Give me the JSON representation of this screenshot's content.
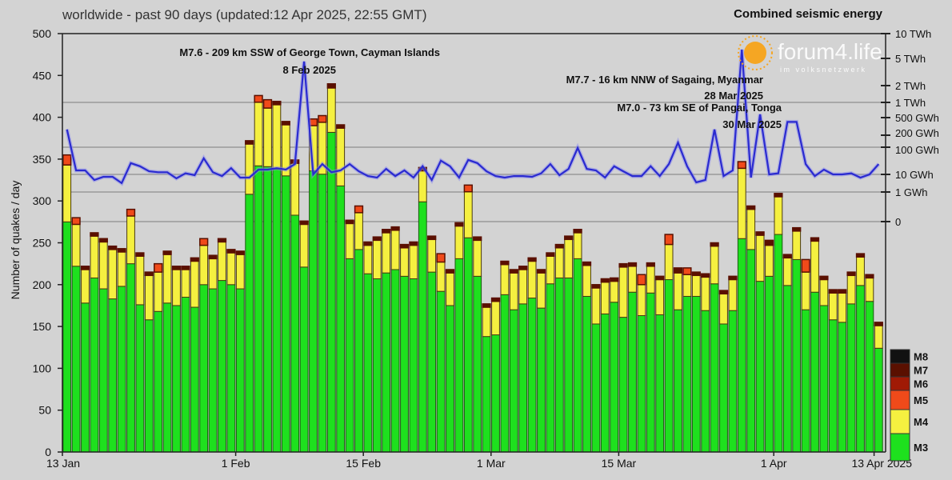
{
  "header": {
    "title": "worldwide - past 90 days (updated:12 Apr 2025, 22:55 GMT)",
    "right_title": "Combined seismic energy"
  },
  "watermark": {
    "name": "forum4.life",
    "tagline": "im volksnetzwerk"
  },
  "chart_data": {
    "type": "bar",
    "stacked": true,
    "title": "worldwide - past 90 days (updated:12 Apr 2025, 22:55 GMT)",
    "ylabel": "Number of quakes / day",
    "y2label": "Combined seismic energy",
    "ylim": [
      0,
      500
    ],
    "yticks": [
      0,
      50,
      100,
      150,
      200,
      250,
      300,
      350,
      400,
      450,
      500
    ],
    "xtick_labels": [
      {
        "day": 0,
        "label": "13 Jan"
      },
      {
        "day": 19,
        "label": "1 Feb"
      },
      {
        "day": 33,
        "label": "15 Feb"
      },
      {
        "day": 47,
        "label": "1 Mar"
      },
      {
        "day": 61,
        "label": "15 Mar"
      },
      {
        "day": 78,
        "label": "1 Apr"
      },
      {
        "day": 89,
        "label": "13 Apr 2025"
      }
    ],
    "y2ticks": [
      {
        "gwh": 10000,
        "label": "10 TWh"
      },
      {
        "gwh": 5000,
        "label": "5 TWh"
      },
      {
        "gwh": 2000,
        "label": "2 TWh"
      },
      {
        "gwh": 1000,
        "label": "1 TWh"
      },
      {
        "gwh": 500,
        "label": "500 GWh"
      },
      {
        "gwh": 200,
        "label": "200 GWh"
      },
      {
        "gwh": 100,
        "label": "100 GWh"
      },
      {
        "gwh": 10,
        "label": "10 GWh"
      },
      {
        "gwh": 1,
        "label": "1 GWh"
      },
      {
        "gwh": 0,
        "label": "0"
      }
    ],
    "legend": [
      {
        "label": "M8",
        "color": "#111111"
      },
      {
        "label": "M7",
        "color": "#5a1000"
      },
      {
        "label": "M6",
        "color": "#a01a05"
      },
      {
        "label": "M5",
        "color": "#f04a1a"
      },
      {
        "label": "M4",
        "color": "#f5f040"
      },
      {
        "label": "M3",
        "color": "#1ee01e"
      }
    ],
    "legend_placement": "bottom-right",
    "series_m3": [
      275,
      222,
      178,
      208,
      195,
      183,
      198,
      225,
      176,
      158,
      168,
      178,
      175,
      185,
      173,
      200,
      195,
      205,
      200,
      195,
      308,
      342,
      341,
      338,
      330,
      283,
      221,
      336,
      332,
      382,
      318,
      231,
      242,
      213,
      207,
      214,
      218,
      210,
      207,
      299,
      215,
      192,
      175,
      231,
      256,
      210,
      138,
      140,
      188,
      170,
      177,
      184,
      172,
      201,
      208,
      208,
      231,
      186,
      153,
      165,
      179,
      161,
      191,
      163,
      190,
      164,
      206,
      170,
      186,
      186,
      169,
      201,
      153,
      169,
      255,
      242,
      204,
      210,
      260,
      199,
      230,
      170,
      191,
      175,
      158,
      155,
      177,
      199,
      180,
      124
    ],
    "series_total": [
      355,
      280,
      222,
      262,
      255,
      246,
      243,
      290,
      238,
      215,
      225,
      240,
      222,
      222,
      232,
      255,
      235,
      255,
      242,
      240,
      372,
      426,
      421,
      419,
      395,
      349,
      276,
      398,
      402,
      440,
      391,
      277,
      294,
      251,
      257,
      266,
      269,
      248,
      251,
      340,
      258,
      237,
      218,
      274,
      319,
      257,
      177,
      184,
      228,
      218,
      222,
      232,
      218,
      238,
      248,
      258,
      266,
      227,
      200,
      207,
      208,
      225,
      226,
      212,
      226,
      210,
      260,
      220,
      220,
      215,
      213,
      250,
      193,
      210,
      347,
      294,
      263,
      253,
      309,
      236,
      268,
      230,
      256,
      210,
      194,
      194,
      215,
      237,
      212,
      155
    ],
    "series_m5plus": [
      12,
      8,
      4,
      4,
      4,
      4,
      4,
      8,
      4,
      4,
      10,
      4,
      4,
      4,
      4,
      8,
      4,
      4,
      4,
      4,
      4,
      8,
      10,
      4,
      4,
      4,
      4,
      8,
      8,
      5,
      4,
      4,
      8,
      4,
      4,
      4,
      4,
      4,
      4,
      4,
      4,
      10,
      4,
      4,
      8,
      4,
      4,
      4,
      4,
      4,
      4,
      4,
      4,
      4,
      4,
      4,
      4,
      4,
      4,
      4,
      4,
      4,
      4,
      12,
      4,
      4,
      12,
      6,
      8,
      4,
      4,
      4,
      4,
      4,
      8,
      4,
      4,
      6,
      4,
      4,
      4,
      15,
      4,
      4,
      4,
      4,
      4,
      4,
      4,
      4
    ],
    "energy_gwh": [
      270,
      14,
      14,
      4.8,
      7.3,
      7.3,
      3.2,
      26,
      20,
      13,
      12,
      12,
      5.9,
      11,
      9,
      39,
      12,
      8,
      17,
      6.6,
      6.6,
      15,
      15,
      17,
      15,
      24,
      4500,
      10,
      24,
      12,
      14,
      24,
      13,
      8,
      6.6,
      16,
      8,
      14,
      6.6,
      20,
      4.8,
      32,
      20,
      6.6,
      34,
      26,
      13,
      8,
      6.6,
      8,
      8,
      7.3,
      11,
      24,
      9,
      16,
      94,
      16,
      14,
      6.6,
      20,
      13,
      8,
      8,
      20,
      8,
      24,
      130,
      20,
      3.5,
      4.8,
      270,
      8,
      14,
      6400,
      6.6,
      580,
      10,
      11,
      400,
      400,
      24,
      8,
      15,
      10,
      10,
      11,
      6.6,
      10,
      24
    ],
    "annotations": [
      {
        "day": 26,
        "text": "M7.6 - 209 km SSW of George Town, Cayman Islands",
        "date": "8 Feb 2025"
      },
      {
        "day": 74,
        "text": "M7.7 - 16 km NNW of Sagaing, Myanmar",
        "date": "28 Mar 2025"
      },
      {
        "day": 76,
        "text": "M7.0 - 73 km SE of Pangai, Tonga",
        "date": "30 Mar 2025"
      }
    ],
    "colors": {
      "m3": "#1ee01e",
      "m4": "#f5f040",
      "m5": "#f04a1a",
      "cap": "#5a1000",
      "energy": "#2a2ad0",
      "grid": "#a8a8a8"
    }
  }
}
